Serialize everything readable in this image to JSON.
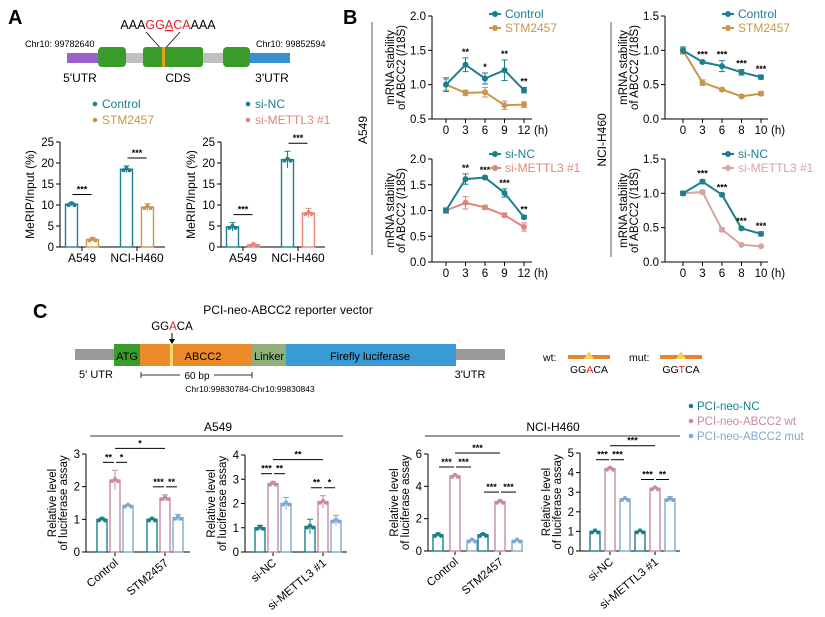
{
  "panels": {
    "a": "A",
    "b": "B",
    "c": "C"
  },
  "colors": {
    "teal": "#1b7f8c",
    "gold": "#c8964a",
    "salmon": "#e3847b",
    "pink": "#c98aa2",
    "lightblue": "#80a8d0",
    "exon": "#3a9a2a",
    "utr5": "#9a62c8",
    "utr3": "#3a8fd0",
    "intron": "#c0c0c0",
    "orange": "#e8842a",
    "motif_red": "#e0202a"
  },
  "gene_diagram": {
    "seq_prefix": "AAA",
    "motif_1": "GG",
    "motif_2": "A",
    "motif_3": "CA",
    "seq_suffix": "AAA",
    "left_coord": "Chr10: 99782640",
    "right_coord": "Chr10: 99852594",
    "label_5utr": "5'UTR",
    "label_cds": "CDS",
    "label_3utr": "3'UTR"
  },
  "row_labels": {
    "a549": "A549",
    "h460": "NCI-H460"
  },
  "vector": {
    "title": "PCI-neo-ABCC2 reporter vector",
    "motif_1": "GG",
    "motif_2": "A",
    "motif_3": "CA",
    "atg": "ATG",
    "abcc2": "ABCC2",
    "linker": "Linker",
    "luciferase": "Firefly luciferase",
    "utr5": "5' UTR",
    "utr3": "3'UTR",
    "span": "60 bp",
    "coords": "Chr10:99830784-Chr10:99830843",
    "wt_label": "wt:",
    "wt_1": "GG",
    "wt_2": "A",
    "wt_3": "CA",
    "mut_label": "mut:",
    "mut_1": "GG",
    "mut_2": "T",
    "mut_3": "CA"
  },
  "c_legend": [
    {
      "label": "PCI-neo-NC",
      "color": "#1b7f8c"
    },
    {
      "label": "PCI-neo-ABCC2 wt",
      "color": "#c98aa2"
    },
    {
      "label": "PCI-neo-ABCC2 mut",
      "color": "#80a8d0"
    }
  ],
  "c_headers": {
    "left": "A549",
    "right": "NCI-H460"
  },
  "chart_data": [
    {
      "type": "bar",
      "ylabel": "MeRIP/Input (%)",
      "ylim": [
        0,
        25
      ],
      "yticks": [
        0,
        5,
        10,
        15,
        20,
        25
      ],
      "categories": [
        "A549",
        "NCI-H460"
      ],
      "series": [
        {
          "name": "Control",
          "color": "#1b7f8c",
          "values": [
            10.2,
            18.5
          ],
          "errors": [
            0.4,
            0.8
          ]
        },
        {
          "name": "STM2457",
          "color": "#c8964a",
          "values": [
            1.8,
            9.5
          ],
          "errors": [
            0.4,
            0.8
          ]
        }
      ],
      "significance": [
        {
          "a": [
            0,
            0
          ],
          "b": [
            0,
            1
          ],
          "text": "***"
        },
        {
          "a": [
            1,
            0
          ],
          "b": [
            1,
            1
          ],
          "text": "***"
        }
      ]
    },
    {
      "type": "bar",
      "ylabel": "MeRIP/Input (%)",
      "ylim": [
        0,
        25
      ],
      "yticks": [
        0,
        5,
        10,
        15,
        20,
        25
      ],
      "categories": [
        "A549",
        "NCI-H460"
      ],
      "series": [
        {
          "name": "si-NC",
          "color": "#1b7f8c",
          "values": [
            4.8,
            20.8
          ],
          "errors": [
            1.0,
            2.0
          ]
        },
        {
          "name": "si-METTL3 #1",
          "color": "#e3847b",
          "values": [
            0.5,
            8.1
          ],
          "errors": [
            0.2,
            1.1
          ]
        }
      ],
      "significance": [
        {
          "a": [
            0,
            0
          ],
          "b": [
            0,
            1
          ],
          "text": "***"
        },
        {
          "a": [
            1,
            0
          ],
          "b": [
            1,
            1
          ],
          "text": "***"
        }
      ]
    },
    {
      "type": "line",
      "ylabel": [
        "mRNA stability",
        "of ABCC2 (/18S)"
      ],
      "ylim": [
        0.5,
        2.0
      ],
      "yticks": [
        "0.5",
        "1.0",
        "1.5",
        "2.0"
      ],
      "x": [
        "0",
        "3",
        "6",
        "9",
        "12"
      ],
      "xunit": "(h)",
      "series": [
        {
          "name": "Control",
          "color": "#1b7f8c",
          "values": [
            1.0,
            1.29,
            1.09,
            1.21,
            0.92
          ],
          "errors": [
            0.1,
            0.1,
            0.08,
            0.15,
            0.04
          ]
        },
        {
          "name": "STM2457",
          "color": "#c8964a",
          "values": [
            1.0,
            0.88,
            0.89,
            0.7,
            0.71
          ],
          "errors": [
            0.08,
            0.04,
            0.07,
            0.06,
            0.04
          ]
        }
      ],
      "stars": [
        "",
        "**",
        "*",
        "**",
        "**"
      ]
    },
    {
      "type": "line",
      "ylabel": [
        "mRNA stability",
        "of ABCC2 (/18S)"
      ],
      "ylim": [
        0.0,
        2.0
      ],
      "yticks": [
        "0.0",
        "0.5",
        "1.0",
        "1.5",
        "2.0"
      ],
      "x": [
        "0",
        "3",
        "6",
        "9",
        "12"
      ],
      "xunit": "(h)",
      "series": [
        {
          "name": "si-NC",
          "color": "#1b7f8c",
          "values": [
            1.0,
            1.61,
            1.64,
            1.34,
            0.87
          ],
          "errors": [
            0.05,
            0.1,
            0.03,
            0.08,
            0.03
          ]
        },
        {
          "name": "si-METTL3 #1",
          "color": "#e3847b",
          "values": [
            1.0,
            1.15,
            1.06,
            0.91,
            0.68
          ],
          "errors": [
            0.03,
            0.12,
            0.04,
            0.04,
            0.08
          ]
        }
      ],
      "stars": [
        "",
        "**",
        "***",
        "***",
        "**"
      ]
    },
    {
      "type": "line",
      "ylabel": [
        "mRNA stability",
        "of ABCC2 (/18S)"
      ],
      "ylim": [
        0.0,
        1.5
      ],
      "yticks": [
        "0.0",
        "0.5",
        "1.0",
        "1.5"
      ],
      "x": [
        "0",
        "3",
        "6",
        "8",
        "10"
      ],
      "xunit": "(h)",
      "series": [
        {
          "name": "Control",
          "color": "#1b7f8c",
          "values": [
            1.0,
            0.83,
            0.77,
            0.68,
            0.61
          ],
          "errors": [
            0.05,
            0.02,
            0.08,
            0.04,
            0.03
          ]
        },
        {
          "name": "STM2457",
          "color": "#c8964a",
          "values": [
            1.0,
            0.53,
            0.43,
            0.33,
            0.37
          ],
          "errors": [
            0.03,
            0.04,
            0.02,
            0.02,
            0.03
          ]
        }
      ],
      "stars": [
        "",
        "***",
        "***",
        "***",
        "***"
      ]
    },
    {
      "type": "line",
      "ylabel": [
        "mRNA stability",
        "of ABCC2 (/18S)"
      ],
      "ylim": [
        0.0,
        1.5
      ],
      "yticks": [
        "0.0",
        "0.5",
        "1.0",
        "1.5"
      ],
      "x": [
        "0",
        "3",
        "6",
        "8",
        "10"
      ],
      "xunit": "(h)",
      "series": [
        {
          "name": "si-NC",
          "color": "#1b7f8c",
          "values": [
            1.0,
            1.17,
            0.98,
            0.49,
            0.41
          ],
          "errors": [
            0.03,
            0.03,
            0.02,
            0.02,
            0.03
          ]
        },
        {
          "name": "si-METTL3 #1",
          "color": "#d9a3a3",
          "values": [
            1.0,
            1.02,
            0.47,
            0.25,
            0.23
          ],
          "errors": [
            0.02,
            0.03,
            0.03,
            0.01,
            0.01
          ]
        }
      ],
      "stars": [
        "",
        "***",
        "***",
        "***",
        "***"
      ]
    },
    {
      "type": "bar",
      "ylabel": [
        "Relative level",
        "of luciferase assay"
      ],
      "ylim": [
        0,
        3
      ],
      "yticks": [
        0,
        1,
        2,
        3
      ],
      "categories": [
        "Control",
        "STM2457"
      ],
      "series": [
        {
          "name": "PCI-neo-NC",
          "color": "#1b7f8c",
          "values": [
            1.0,
            1.0
          ],
          "errors": [
            0.04,
            0.03
          ]
        },
        {
          "name": "PCI-neo-ABCC2 wt",
          "color": "#c98aa2",
          "values": [
            2.2,
            1.65
          ],
          "errors": [
            0.3,
            0.1
          ]
        },
        {
          "name": "PCI-neo-ABCC2 mut",
          "color": "#80a8d0",
          "values": [
            1.42,
            1.05
          ],
          "errors": [
            0.03,
            0.1
          ]
        }
      ],
      "significance": [
        {
          "a": [
            0,
            0
          ],
          "b": [
            0,
            1
          ],
          "text": "**"
        },
        {
          "a": [
            0,
            1
          ],
          "b": [
            0,
            2
          ],
          "text": "*"
        },
        {
          "a": [
            1,
            0
          ],
          "b": [
            1,
            1
          ],
          "text": "***"
        },
        {
          "a": [
            1,
            1
          ],
          "b": [
            1,
            2
          ],
          "text": "**"
        },
        {
          "a": [
            0,
            1
          ],
          "b": [
            1,
            1
          ],
          "text": "*",
          "cross": true
        }
      ]
    },
    {
      "type": "bar",
      "ylabel": [
        "Relative level",
        "of luciferase assay"
      ],
      "ylim": [
        0,
        4
      ],
      "yticks": [
        0,
        1,
        2,
        3,
        4
      ],
      "categories": [
        "si-NC",
        "si-METTL3 #1"
      ],
      "series": [
        {
          "name": "PCI-neo-NC",
          "color": "#1b7f8c",
          "values": [
            1.0,
            1.05
          ],
          "errors": [
            0.1,
            0.3
          ]
        },
        {
          "name": "PCI-neo-ABCC2 wt",
          "color": "#c98aa2",
          "values": [
            2.82,
            2.07
          ],
          "errors": [
            0.08,
            0.25
          ]
        },
        {
          "name": "PCI-neo-ABCC2 mut",
          "color": "#80a8d0",
          "values": [
            2.0,
            1.3
          ],
          "errors": [
            0.25,
            0.2
          ]
        }
      ],
      "significance": [
        {
          "a": [
            0,
            0
          ],
          "b": [
            0,
            1
          ],
          "text": "***"
        },
        {
          "a": [
            0,
            1
          ],
          "b": [
            0,
            2
          ],
          "text": "**"
        },
        {
          "a": [
            1,
            0
          ],
          "b": [
            1,
            1
          ],
          "text": "**"
        },
        {
          "a": [
            1,
            1
          ],
          "b": [
            1,
            2
          ],
          "text": "*"
        },
        {
          "a": [
            0,
            1
          ],
          "b": [
            1,
            1
          ],
          "text": "**",
          "cross": true
        }
      ]
    },
    {
      "type": "bar",
      "ylabel": [
        "Relative level",
        "of luciferase assay"
      ],
      "ylim": [
        0,
        6
      ],
      "yticks": [
        0,
        2,
        4,
        6
      ],
      "categories": [
        "Control",
        "STM2457"
      ],
      "series": [
        {
          "name": "PCI-neo-NC",
          "color": "#1b7f8c",
          "values": [
            1.0,
            1.0
          ],
          "errors": [
            0.1,
            0.08
          ]
        },
        {
          "name": "PCI-neo-ABCC2 wt",
          "color": "#c98aa2",
          "values": [
            4.65,
            3.05
          ],
          "errors": [
            0.05,
            0.1
          ]
        },
        {
          "name": "PCI-neo-ABCC2 mut",
          "color": "#80a8d0",
          "values": [
            0.65,
            0.65
          ],
          "errors": [
            0.05,
            0.03
          ]
        }
      ],
      "significance": [
        {
          "a": [
            0,
            0
          ],
          "b": [
            0,
            1
          ],
          "text": "***"
        },
        {
          "a": [
            0,
            1
          ],
          "b": [
            0,
            2
          ],
          "text": "***"
        },
        {
          "a": [
            1,
            0
          ],
          "b": [
            1,
            1
          ],
          "text": "***"
        },
        {
          "a": [
            1,
            1
          ],
          "b": [
            1,
            2
          ],
          "text": "***"
        },
        {
          "a": [
            0,
            1
          ],
          "b": [
            1,
            1
          ],
          "text": "***",
          "cross": true
        }
      ]
    },
    {
      "type": "bar",
      "ylabel": [
        "Relative level",
        "of luciferase assay"
      ],
      "ylim": [
        0,
        5
      ],
      "yticks": [
        0,
        1,
        2,
        3,
        4,
        5
      ],
      "categories": [
        "si-NC",
        "si-METTL3 #1"
      ],
      "series": [
        {
          "name": "PCI-neo-NC",
          "color": "#1b7f8c",
          "values": [
            1.0,
            1.0
          ],
          "errors": [
            0.02,
            0.03
          ]
        },
        {
          "name": "PCI-neo-ABCC2 wt",
          "color": "#c98aa2",
          "values": [
            4.2,
            3.2
          ],
          "errors": [
            0.05,
            0.04
          ]
        },
        {
          "name": "PCI-neo-ABCC2 mut",
          "color": "#80a8d0",
          "values": [
            2.65,
            2.65
          ],
          "errors": [
            0.03,
            0.12
          ]
        }
      ],
      "significance": [
        {
          "a": [
            0,
            0
          ],
          "b": [
            0,
            1
          ],
          "text": "***"
        },
        {
          "a": [
            0,
            1
          ],
          "b": [
            0,
            2
          ],
          "text": "***"
        },
        {
          "a": [
            1,
            0
          ],
          "b": [
            1,
            1
          ],
          "text": "***"
        },
        {
          "a": [
            1,
            1
          ],
          "b": [
            1,
            2
          ],
          "text": "**"
        },
        {
          "a": [
            0,
            1
          ],
          "b": [
            1,
            1
          ],
          "text": "***",
          "cross": true
        }
      ]
    }
  ]
}
